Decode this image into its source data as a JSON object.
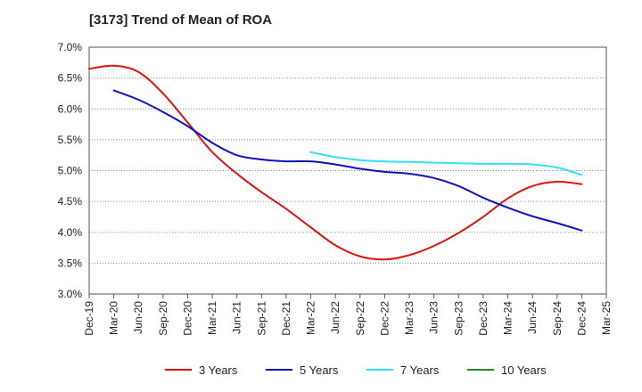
{
  "chart_data": {
    "type": "line",
    "title": "[3173]  Trend of Mean of ROA",
    "xlabel": "",
    "ylabel": "",
    "ylim": [
      3.0,
      7.0
    ],
    "y_ticks": [
      "3.0%",
      "3.5%",
      "4.0%",
      "4.5%",
      "5.0%",
      "5.5%",
      "6.0%",
      "6.5%",
      "7.0%"
    ],
    "x_ticks": [
      "Dec-19",
      "Mar-20",
      "Jun-20",
      "Sep-20",
      "Dec-20",
      "Mar-21",
      "Jun-21",
      "Sep-21",
      "Dec-21",
      "Mar-22",
      "Jun-22",
      "Sep-22",
      "Dec-22",
      "Mar-23",
      "Jun-23",
      "Sep-23",
      "Dec-23",
      "Mar-24",
      "Jun-24",
      "Sep-24",
      "Dec-24",
      "Mar-25"
    ],
    "grid": "horizontal-dotted",
    "legend_position": "bottom",
    "series": [
      {
        "name": "3 Years",
        "color": "#dd1111",
        "start_index": 0,
        "values": [
          6.65,
          6.7,
          6.6,
          6.25,
          5.78,
          5.3,
          4.95,
          4.65,
          4.38,
          4.08,
          3.79,
          3.61,
          3.56,
          3.63,
          3.78,
          3.99,
          4.25,
          4.55,
          4.75,
          4.82,
          4.78
        ]
      },
      {
        "name": "5 Years",
        "color": "#1111bb",
        "start_index": 1,
        "values": [
          6.3,
          6.15,
          5.95,
          5.72,
          5.45,
          5.25,
          5.18,
          5.15,
          5.15,
          5.1,
          5.03,
          4.98,
          4.95,
          4.88,
          4.75,
          4.56,
          4.4,
          4.26,
          4.15,
          4.03
        ]
      },
      {
        "name": "7 Years",
        "color": "#33e0ee",
        "start_index": 9,
        "values": [
          5.3,
          5.22,
          5.17,
          5.15,
          5.14,
          5.13,
          5.12,
          5.11,
          5.11,
          5.1,
          5.05,
          4.93
        ]
      },
      {
        "name": "10 Years",
        "color": "#228822",
        "start_index": 0,
        "values": []
      }
    ]
  }
}
